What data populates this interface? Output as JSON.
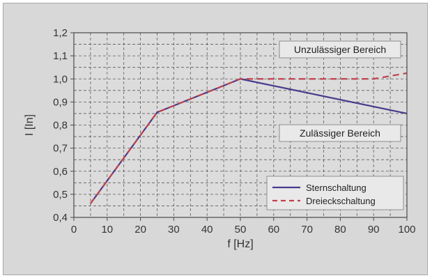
{
  "chart_data": {
    "type": "line",
    "xlabel": "f [Hz]",
    "ylabel": "I [In]",
    "xlim": [
      0,
      100
    ],
    "ylim": [
      0.4,
      1.2
    ],
    "x_ticks": [
      "0",
      "10",
      "20",
      "30",
      "40",
      "50",
      "60",
      "70",
      "80",
      "90",
      "100"
    ],
    "y_ticks": [
      "0,4",
      "0,5",
      "0,6",
      "0,7",
      "0,8",
      "0,9",
      "1,0",
      "1,1",
      "1,2"
    ],
    "grid": true,
    "legend": "bottom-right",
    "series": [
      {
        "name": "Sternschaltung",
        "color": "#4a3a8a",
        "dash": "solid",
        "x": [
          5,
          25,
          50,
          100
        ],
        "y": [
          0.46,
          0.855,
          1.0,
          0.85
        ]
      },
      {
        "name": "Dreieckschaltung",
        "color": "#c0404a",
        "dash": "dashed",
        "x": [
          5,
          25,
          50,
          90,
          100
        ],
        "y": [
          0.46,
          0.855,
          1.0,
          1.0,
          1.025
        ]
      }
    ],
    "annotations": [
      {
        "id": "above",
        "text": "Unzulässiger Bereich"
      },
      {
        "id": "below",
        "text": "Zulässiger Bereich"
      }
    ]
  }
}
